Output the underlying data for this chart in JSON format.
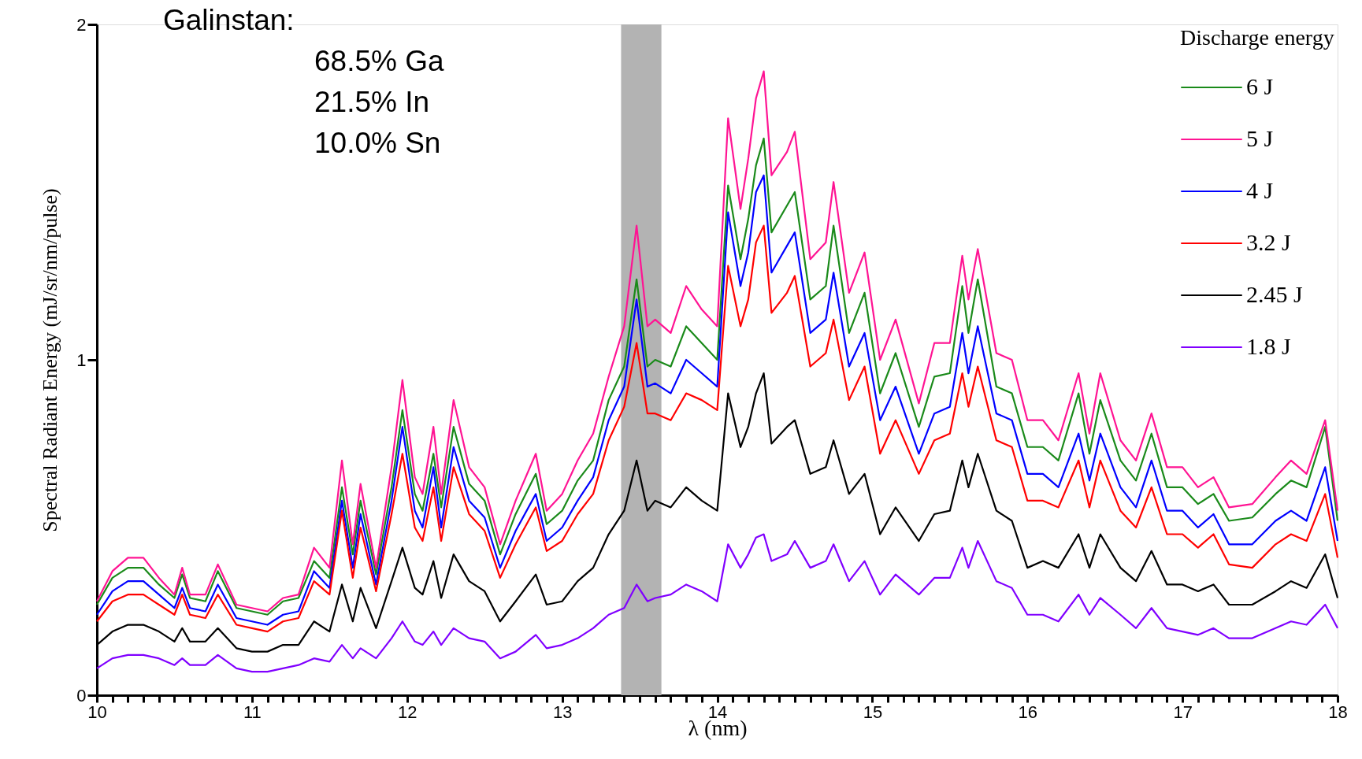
{
  "chart_data": {
    "type": "line",
    "xlabel": "λ (nm)",
    "ylabel": "Spectral Radiant Energy (mJ/sr/nm/pulse)",
    "legend_title": "Discharge energy",
    "legend": "top right",
    "grid": false,
    "marker": "none",
    "line_style": "solid",
    "annotations": [
      "Galinstan:",
      "68.5% Ga",
      "21.5% In",
      "10.0% Sn"
    ],
    "bands": [
      {
        "axis": "x",
        "from": 13.38,
        "to": 13.64,
        "color": "#b3b3b3"
      }
    ],
    "xlim": [
      10,
      18
    ],
    "ylim": [
      0,
      2
    ],
    "yticks": [
      0,
      1,
      2
    ],
    "xticks": [
      10,
      11,
      12,
      13,
      14,
      15,
      16,
      17,
      18,
      {
        "value": 10.1,
        "label": null
      },
      {
        "value": 10.2,
        "label": null
      },
      {
        "value": 10.3,
        "label": null
      },
      {
        "value": 10.4,
        "label": null
      },
      {
        "value": 10.5,
        "label": null
      },
      {
        "value": 10.6,
        "label": null
      },
      {
        "value": 10.7,
        "label": null
      },
      {
        "value": 10.8,
        "label": null
      },
      {
        "value": 10.9,
        "label": null
      },
      {
        "value": 11.1,
        "label": null
      },
      {
        "value": 11.2,
        "label": null
      },
      {
        "value": 11.3,
        "label": null
      },
      {
        "value": 11.4,
        "label": null
      },
      {
        "value": 11.5,
        "label": null
      },
      {
        "value": 11.6,
        "label": null
      },
      {
        "value": 11.7,
        "label": null
      },
      {
        "value": 11.8,
        "label": null
      },
      {
        "value": 11.9,
        "label": null
      },
      {
        "value": 12.1,
        "label": null
      },
      {
        "value": 12.2,
        "label": null
      },
      {
        "value": 12.3,
        "label": null
      },
      {
        "value": 12.4,
        "label": null
      },
      {
        "value": 12.5,
        "label": null
      },
      {
        "value": 12.6,
        "label": null
      },
      {
        "value": 12.7,
        "label": null
      },
      {
        "value": 12.8,
        "label": null
      },
      {
        "value": 12.9,
        "label": null
      },
      {
        "value": 13.1,
        "label": null
      },
      {
        "value": 13.2,
        "label": null
      },
      {
        "value": 13.3,
        "label": null
      },
      {
        "value": 13.4,
        "label": null
      },
      {
        "value": 13.5,
        "label": null
      },
      {
        "value": 13.6,
        "label": null
      },
      {
        "value": 13.7,
        "label": null
      },
      {
        "value": 13.8,
        "label": null
      },
      {
        "value": 13.9,
        "label": null
      },
      {
        "value": 14.1,
        "label": null
      },
      {
        "value": 14.2,
        "label": null
      },
      {
        "value": 14.3,
        "label": null
      },
      {
        "value": 14.4,
        "label": null
      },
      {
        "value": 14.5,
        "label": null
      },
      {
        "value": 14.6,
        "label": null
      },
      {
        "value": 14.7,
        "label": null
      },
      {
        "value": 14.8,
        "label": null
      },
      {
        "value": 14.9,
        "label": null
      },
      {
        "value": 15.1,
        "label": null
      },
      {
        "value": 15.2,
        "label": null
      },
      {
        "value": 15.3,
        "label": null
      },
      {
        "value": 15.4,
        "label": null
      },
      {
        "value": 15.5,
        "label": null
      },
      {
        "value": 15.6,
        "label": null
      },
      {
        "value": 15.7,
        "label": null
      },
      {
        "value": 15.8,
        "label": null
      },
      {
        "value": 15.9,
        "label": null
      },
      {
        "value": 16.1,
        "label": null
      },
      {
        "value": 16.2,
        "label": null
      },
      {
        "value": 16.3,
        "label": null
      },
      {
        "value": 16.4,
        "label": null
      },
      {
        "value": 16.5,
        "label": null
      },
      {
        "value": 16.6,
        "label": null
      },
      {
        "value": 16.7,
        "label": null
      },
      {
        "value": 16.8,
        "label": null
      },
      {
        "value": 16.9,
        "label": null
      },
      {
        "value": 17.1,
        "label": null
      },
      {
        "value": 17.2,
        "label": null
      },
      {
        "value": 17.3,
        "label": null
      },
      {
        "value": 17.4,
        "label": null
      },
      {
        "value": 17.5,
        "label": null
      },
      {
        "value": 17.6,
        "label": null
      },
      {
        "value": 17.7,
        "label": null
      },
      {
        "value": 17.8,
        "label": null
      },
      {
        "value": 17.9,
        "label": null
      }
    ],
    "x": [
      10.0,
      10.1,
      10.2,
      10.3,
      10.4,
      10.5,
      10.55,
      10.6,
      10.7,
      10.78,
      10.9,
      11.0,
      11.1,
      11.2,
      11.3,
      11.4,
      11.5,
      11.58,
      11.65,
      11.7,
      11.8,
      11.9,
      11.97,
      12.05,
      12.1,
      12.17,
      12.22,
      12.3,
      12.4,
      12.5,
      12.6,
      12.7,
      12.83,
      12.9,
      13.0,
      13.1,
      13.2,
      13.3,
      13.4,
      13.48,
      13.55,
      13.6,
      13.7,
      13.8,
      13.9,
      14.0,
      14.07,
      14.15,
      14.2,
      14.25,
      14.3,
      14.35,
      14.45,
      14.5,
      14.6,
      14.7,
      14.75,
      14.85,
      14.95,
      15.05,
      15.15,
      15.3,
      15.4,
      15.5,
      15.58,
      15.62,
      15.68,
      15.8,
      15.9,
      16.0,
      16.1,
      16.2,
      16.33,
      16.4,
      16.47,
      16.6,
      16.7,
      16.8,
      16.9,
      17.0,
      17.1,
      17.2,
      17.3,
      17.45,
      17.6,
      17.7,
      17.8,
      17.92,
      18.0
    ],
    "series": [
      {
        "name": "6 J",
        "color": "#1a8a1a",
        "values": [
          0.27,
          0.35,
          0.38,
          0.38,
          0.33,
          0.29,
          0.36,
          0.29,
          0.28,
          0.37,
          0.26,
          0.25,
          0.24,
          0.28,
          0.29,
          0.4,
          0.35,
          0.62,
          0.42,
          0.58,
          0.36,
          0.62,
          0.85,
          0.6,
          0.55,
          0.72,
          0.56,
          0.8,
          0.63,
          0.58,
          0.42,
          0.54,
          0.66,
          0.51,
          0.55,
          0.64,
          0.7,
          0.88,
          0.98,
          1.24,
          0.98,
          1.0,
          0.98,
          1.1,
          1.05,
          1.0,
          1.52,
          1.3,
          1.42,
          1.58,
          1.66,
          1.38,
          1.46,
          1.5,
          1.18,
          1.22,
          1.4,
          1.08,
          1.2,
          0.9,
          1.02,
          0.8,
          0.95,
          0.96,
          1.22,
          1.08,
          1.24,
          0.92,
          0.9,
          0.74,
          0.74,
          0.7,
          0.9,
          0.72,
          0.88,
          0.7,
          0.64,
          0.78,
          0.62,
          0.62,
          0.57,
          0.6,
          0.52,
          0.53,
          0.6,
          0.64,
          0.62,
          0.8,
          0.52
        ]
      },
      {
        "name": "5 J",
        "color": "#ff1493",
        "values": [
          0.28,
          0.37,
          0.41,
          0.41,
          0.35,
          0.3,
          0.38,
          0.3,
          0.3,
          0.39,
          0.27,
          0.26,
          0.25,
          0.29,
          0.3,
          0.44,
          0.38,
          0.7,
          0.45,
          0.63,
          0.38,
          0.68,
          0.94,
          0.65,
          0.6,
          0.8,
          0.6,
          0.88,
          0.68,
          0.62,
          0.45,
          0.58,
          0.72,
          0.55,
          0.6,
          0.7,
          0.78,
          0.95,
          1.1,
          1.4,
          1.1,
          1.12,
          1.08,
          1.22,
          1.15,
          1.1,
          1.72,
          1.45,
          1.6,
          1.78,
          1.86,
          1.55,
          1.62,
          1.68,
          1.3,
          1.35,
          1.53,
          1.2,
          1.32,
          1.0,
          1.12,
          0.87,
          1.05,
          1.05,
          1.31,
          1.18,
          1.33,
          1.02,
          1.0,
          0.82,
          0.82,
          0.76,
          0.96,
          0.78,
          0.96,
          0.76,
          0.7,
          0.84,
          0.68,
          0.68,
          0.62,
          0.65,
          0.56,
          0.57,
          0.65,
          0.7,
          0.66,
          0.82,
          0.55
        ]
      },
      {
        "name": "4 J",
        "color": "#0000ff",
        "values": [
          0.24,
          0.31,
          0.34,
          0.34,
          0.3,
          0.26,
          0.32,
          0.26,
          0.25,
          0.33,
          0.23,
          0.22,
          0.21,
          0.24,
          0.25,
          0.37,
          0.32,
          0.58,
          0.38,
          0.54,
          0.33,
          0.58,
          0.8,
          0.55,
          0.5,
          0.68,
          0.5,
          0.74,
          0.58,
          0.53,
          0.38,
          0.49,
          0.6,
          0.46,
          0.5,
          0.58,
          0.65,
          0.82,
          0.92,
          1.18,
          0.92,
          0.93,
          0.9,
          1.0,
          0.96,
          0.92,
          1.44,
          1.22,
          1.32,
          1.5,
          1.55,
          1.26,
          1.34,
          1.38,
          1.08,
          1.12,
          1.26,
          0.98,
          1.08,
          0.82,
          0.92,
          0.72,
          0.84,
          0.86,
          1.08,
          0.96,
          1.1,
          0.84,
          0.82,
          0.66,
          0.66,
          0.62,
          0.78,
          0.64,
          0.78,
          0.62,
          0.56,
          0.7,
          0.55,
          0.55,
          0.5,
          0.54,
          0.45,
          0.45,
          0.52,
          0.55,
          0.52,
          0.68,
          0.46
        ]
      },
      {
        "name": "3.2 J",
        "color": "#ff0000",
        "values": [
          0.22,
          0.28,
          0.3,
          0.3,
          0.27,
          0.24,
          0.3,
          0.24,
          0.23,
          0.3,
          0.21,
          0.2,
          0.19,
          0.22,
          0.23,
          0.34,
          0.3,
          0.55,
          0.35,
          0.5,
          0.31,
          0.54,
          0.72,
          0.5,
          0.46,
          0.62,
          0.46,
          0.68,
          0.54,
          0.49,
          0.35,
          0.45,
          0.56,
          0.43,
          0.46,
          0.54,
          0.6,
          0.76,
          0.86,
          1.05,
          0.84,
          0.84,
          0.82,
          0.9,
          0.88,
          0.85,
          1.28,
          1.1,
          1.18,
          1.35,
          1.4,
          1.14,
          1.2,
          1.25,
          0.98,
          1.02,
          1.12,
          0.88,
          0.98,
          0.72,
          0.82,
          0.66,
          0.76,
          0.78,
          0.96,
          0.86,
          0.98,
          0.76,
          0.74,
          0.58,
          0.58,
          0.56,
          0.7,
          0.56,
          0.7,
          0.55,
          0.5,
          0.62,
          0.48,
          0.48,
          0.44,
          0.48,
          0.39,
          0.38,
          0.45,
          0.48,
          0.46,
          0.6,
          0.41
        ]
      },
      {
        "name": "2.45 J",
        "color": "#000000",
        "values": [
          0.15,
          0.19,
          0.21,
          0.21,
          0.19,
          0.16,
          0.2,
          0.16,
          0.16,
          0.2,
          0.14,
          0.13,
          0.13,
          0.15,
          0.15,
          0.22,
          0.19,
          0.33,
          0.22,
          0.32,
          0.2,
          0.34,
          0.44,
          0.32,
          0.3,
          0.4,
          0.29,
          0.42,
          0.34,
          0.31,
          0.22,
          0.28,
          0.36,
          0.27,
          0.28,
          0.34,
          0.38,
          0.48,
          0.55,
          0.7,
          0.55,
          0.58,
          0.56,
          0.62,
          0.58,
          0.55,
          0.9,
          0.74,
          0.8,
          0.9,
          0.96,
          0.75,
          0.8,
          0.82,
          0.66,
          0.68,
          0.76,
          0.6,
          0.66,
          0.48,
          0.56,
          0.46,
          0.54,
          0.55,
          0.7,
          0.62,
          0.72,
          0.55,
          0.52,
          0.38,
          0.4,
          0.38,
          0.48,
          0.38,
          0.48,
          0.38,
          0.34,
          0.43,
          0.33,
          0.33,
          0.31,
          0.33,
          0.27,
          0.27,
          0.31,
          0.34,
          0.32,
          0.42,
          0.29
        ]
      },
      {
        "name": "1.8 J",
        "color": "#8000ff",
        "values": [
          0.08,
          0.11,
          0.12,
          0.12,
          0.11,
          0.09,
          0.11,
          0.09,
          0.09,
          0.12,
          0.08,
          0.07,
          0.07,
          0.08,
          0.09,
          0.11,
          0.1,
          0.15,
          0.11,
          0.14,
          0.11,
          0.17,
          0.22,
          0.16,
          0.15,
          0.19,
          0.15,
          0.2,
          0.17,
          0.16,
          0.11,
          0.13,
          0.18,
          0.14,
          0.15,
          0.17,
          0.2,
          0.24,
          0.26,
          0.33,
          0.28,
          0.29,
          0.3,
          0.33,
          0.31,
          0.28,
          0.45,
          0.38,
          0.42,
          0.47,
          0.48,
          0.4,
          0.42,
          0.46,
          0.38,
          0.4,
          0.45,
          0.34,
          0.4,
          0.3,
          0.36,
          0.3,
          0.35,
          0.35,
          0.44,
          0.38,
          0.46,
          0.34,
          0.32,
          0.24,
          0.24,
          0.22,
          0.3,
          0.24,
          0.29,
          0.24,
          0.2,
          0.26,
          0.2,
          0.19,
          0.18,
          0.2,
          0.17,
          0.17,
          0.2,
          0.22,
          0.21,
          0.27,
          0.2
        ]
      }
    ]
  }
}
